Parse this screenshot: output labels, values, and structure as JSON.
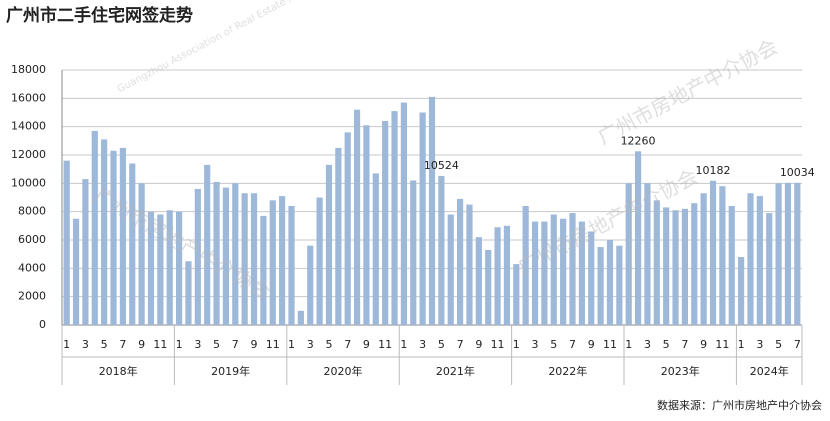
{
  "chart_data": {
    "type": "bar",
    "title": "广州市二手住宅网签走势",
    "source": "数据来源：广州市房地产中介协会",
    "watermark": "广州市房地产中介协会",
    "watermark_en": "Guangzhou Association of Real Estate Agents",
    "color": "#9db8d9",
    "ylim": [
      0,
      18000
    ],
    "yticks": [
      0,
      2000,
      4000,
      6000,
      8000,
      10000,
      12000,
      14000,
      16000,
      18000
    ],
    "grid": true,
    "years": [
      "2018年",
      "2019年",
      "2020年",
      "2021年",
      "2022年",
      "2023年",
      "2024年"
    ],
    "categories": [
      "1",
      null,
      "3",
      null,
      "5",
      null,
      "7",
      null,
      "9",
      null,
      "11",
      null,
      "1",
      null,
      "3",
      null,
      "5",
      null,
      "7",
      null,
      "9",
      null,
      "11",
      null,
      "1",
      null,
      "3",
      null,
      "5",
      null,
      "7",
      null,
      "9",
      null,
      "11",
      null,
      "1",
      null,
      "3",
      null,
      "5",
      null,
      "7",
      null,
      "9",
      null,
      "11",
      null,
      "1",
      null,
      "3",
      null,
      "5",
      null,
      "7",
      null,
      "9",
      null,
      "11",
      null,
      "1",
      null,
      "3",
      null,
      "5",
      null,
      "7",
      null,
      "9",
      null,
      "11",
      null,
      "1",
      null,
      "3",
      null,
      "5",
      null,
      "7"
    ],
    "values": [
      11600,
      7500,
      10300,
      13700,
      13100,
      12300,
      12500,
      11400,
      10000,
      8000,
      7800,
      8100,
      8000,
      4500,
      9600,
      11300,
      10100,
      9700,
      10000,
      9300,
      9300,
      7700,
      8800,
      9100,
      8400,
      1000,
      5600,
      9000,
      11300,
      12500,
      13600,
      15200,
      14100,
      10700,
      14400,
      15100,
      15700,
      10200,
      15000,
      16100,
      10524,
      7800,
      8900,
      8500,
      6200,
      5300,
      6900,
      7000,
      4300,
      8400,
      7300,
      7300,
      7800,
      7500,
      7900,
      7300,
      6600,
      5500,
      6000,
      5600,
      10000,
      12260,
      10000,
      8800,
      8300,
      8100,
      8200,
      8600,
      9300,
      10182,
      9800,
      8400,
      4800,
      9300,
      9100,
      7900,
      10000,
      10034,
      10034
    ],
    "value_labels": [
      null,
      null,
      null,
      null,
      null,
      null,
      null,
      null,
      null,
      null,
      null,
      null,
      null,
      null,
      null,
      null,
      null,
      null,
      null,
      null,
      null,
      null,
      null,
      null,
      null,
      null,
      null,
      null,
      null,
      null,
      null,
      null,
      null,
      null,
      null,
      null,
      null,
      null,
      null,
      null,
      "10524",
      null,
      null,
      null,
      null,
      null,
      null,
      null,
      null,
      null,
      null,
      null,
      null,
      null,
      null,
      null,
      null,
      null,
      null,
      null,
      null,
      "12260",
      null,
      null,
      null,
      null,
      null,
      null,
      null,
      "10182",
      null,
      null,
      null,
      null,
      null,
      null,
      null,
      null,
      "10034"
    ]
  }
}
